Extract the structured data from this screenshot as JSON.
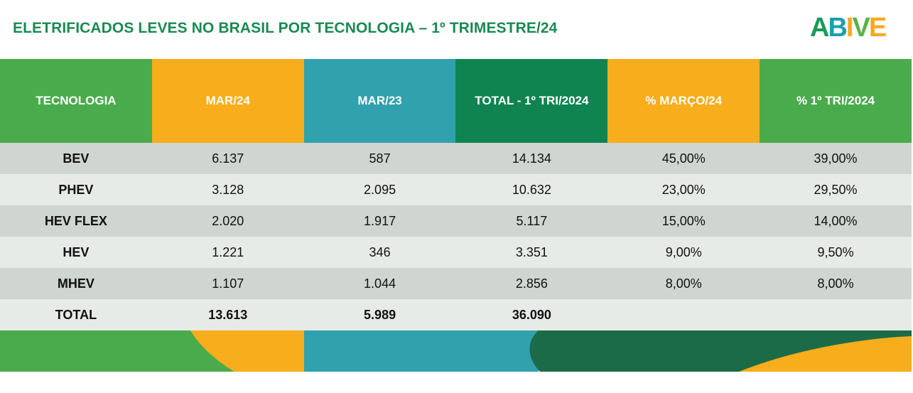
{
  "title": "ELETRIFICADOS LEVES NO BRASIL POR TECNOLOGIA – 1º TRIMESTRE/24",
  "logo": {
    "letters": [
      "A",
      "B",
      "I",
      "V",
      "E"
    ]
  },
  "colors": {
    "green": "#4aab4c",
    "orange": "#f7ad1c",
    "teal": "#31a1ae",
    "dark_green": "#0f8451",
    "title_green": "#1a8a52"
  },
  "table": {
    "headers": [
      "TECNOLOGIA",
      "MAR/24",
      "MAR/23",
      "TOTAL - 1º TRI/2024",
      "% MARÇO/24",
      "% 1º TRI/2024"
    ],
    "rows": [
      [
        "BEV",
        "6.137",
        "587",
        "14.134",
        "45,00%",
        "39,00%"
      ],
      [
        "PHEV",
        "3.128",
        "2.095",
        "10.632",
        "23,00%",
        "29,50%"
      ],
      [
        "HEV FLEX",
        "2.020",
        "1.917",
        "5.117",
        "15,00%",
        "14,00%"
      ],
      [
        "HEV",
        "1.221",
        "346",
        "3.351",
        "9,00%",
        "9,50%"
      ],
      [
        "MHEV",
        "1.107",
        "1.044",
        "2.856",
        "8,00%",
        "8,00%"
      ],
      [
        "TOTAL",
        "13.613",
        "5.989",
        "36.090",
        "",
        ""
      ]
    ]
  }
}
